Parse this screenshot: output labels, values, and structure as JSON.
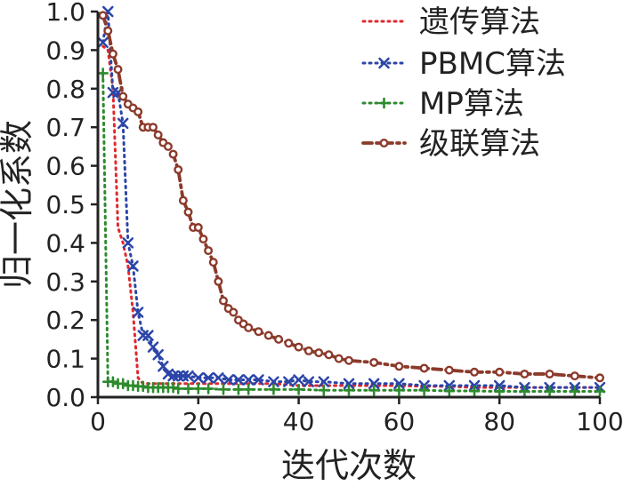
{
  "chart_data": {
    "type": "line",
    "title": "",
    "xlabel": "迭代次数",
    "ylabel": "归一化系数",
    "xlim": [
      0,
      100
    ],
    "ylim": [
      0,
      1
    ],
    "xticks": [
      0,
      20,
      40,
      60,
      80,
      100
    ],
    "yticks": [
      0.0,
      0.1,
      0.2,
      0.3,
      0.4,
      0.5,
      0.6,
      0.7,
      0.8,
      0.9,
      1.0
    ],
    "xtick_labels": [
      "0",
      "20",
      "40",
      "60",
      "80",
      "100"
    ],
    "ytick_labels": [
      "0.0",
      "0.1",
      "0.2",
      "0.3",
      "0.4",
      "0.5",
      "0.6",
      "0.7",
      "0.8",
      "0.9",
      "1.0"
    ],
    "grid": false,
    "legend_position": "top-right",
    "series": [
      {
        "name": "遗传算法",
        "color": "#e0282e",
        "line_style": "dotted",
        "marker": "none",
        "x": [
          1,
          2,
          3,
          4,
          5,
          6,
          7,
          8,
          9,
          10,
          12,
          15,
          20,
          25,
          30,
          35,
          40,
          45,
          50,
          55,
          60,
          65,
          70,
          75,
          80,
          85,
          90,
          95,
          100
        ],
        "y": [
          0.91,
          0.9,
          0.8,
          0.44,
          0.4,
          0.34,
          0.22,
          0.05,
          0.035,
          0.035,
          0.035,
          0.035,
          0.035,
          0.035,
          0.035,
          0.035,
          0.03,
          0.03,
          0.03,
          0.03,
          0.03,
          0.028,
          0.028,
          0.025,
          0.025,
          0.025,
          0.025,
          0.025,
          0.025
        ]
      },
      {
        "name": "PBMC算法",
        "color": "#2b45a8",
        "line_style": "dotted",
        "marker": "x",
        "x": [
          1,
          2,
          3,
          4,
          5,
          6,
          7,
          8,
          9,
          10,
          11,
          12,
          13,
          14,
          15,
          16,
          17,
          18,
          20,
          22,
          24,
          26,
          28,
          30,
          32,
          35,
          38,
          40,
          42,
          45,
          50,
          55,
          60,
          65,
          70,
          75,
          80,
          85,
          90,
          95,
          100
        ],
        "y": [
          0.92,
          1.0,
          0.79,
          0.79,
          0.71,
          0.4,
          0.34,
          0.22,
          0.16,
          0.16,
          0.13,
          0.11,
          0.08,
          0.06,
          0.055,
          0.055,
          0.055,
          0.055,
          0.05,
          0.05,
          0.05,
          0.045,
          0.045,
          0.045,
          0.045,
          0.04,
          0.04,
          0.045,
          0.04,
          0.04,
          0.035,
          0.035,
          0.035,
          0.03,
          0.03,
          0.03,
          0.03,
          0.025,
          0.025,
          0.025,
          0.025
        ]
      },
      {
        "name": "MP算法",
        "color": "#2d8a2d",
        "line_style": "dotted",
        "marker": "+",
        "x": [
          1,
          2,
          3,
          4,
          5,
          6,
          7,
          8,
          9,
          10,
          11,
          12,
          13,
          14,
          15,
          16,
          18,
          20,
          22,
          25,
          28,
          30,
          35,
          40,
          45,
          50,
          55,
          60,
          65,
          70,
          75,
          80,
          85,
          90,
          95,
          100
        ],
        "y": [
          0.84,
          0.04,
          0.04,
          0.035,
          0.035,
          0.03,
          0.03,
          0.028,
          0.028,
          0.025,
          0.025,
          0.025,
          0.025,
          0.025,
          0.025,
          0.022,
          0.022,
          0.022,
          0.022,
          0.02,
          0.02,
          0.02,
          0.02,
          0.02,
          0.018,
          0.018,
          0.018,
          0.018,
          0.018,
          0.016,
          0.016,
          0.015,
          0.015,
          0.015,
          0.015,
          0.015
        ]
      },
      {
        "name": "级联算法",
        "color": "#8b3a2b",
        "line_style": "dash-dot",
        "marker": "o",
        "x": [
          1,
          2,
          3,
          4,
          5,
          6,
          7,
          8,
          9,
          10,
          11,
          12,
          13,
          14,
          15,
          16,
          17,
          18,
          19,
          20,
          21,
          22,
          23,
          24,
          25,
          26,
          27,
          28,
          29,
          30,
          32,
          34,
          36,
          38,
          40,
          42,
          44,
          46,
          48,
          50,
          55,
          60,
          65,
          70,
          75,
          80,
          85,
          90,
          95,
          100
        ],
        "y": [
          0.99,
          0.95,
          0.89,
          0.85,
          0.78,
          0.76,
          0.75,
          0.74,
          0.7,
          0.7,
          0.7,
          0.68,
          0.66,
          0.65,
          0.63,
          0.59,
          0.51,
          0.48,
          0.44,
          0.44,
          0.41,
          0.38,
          0.35,
          0.3,
          0.25,
          0.23,
          0.22,
          0.2,
          0.19,
          0.18,
          0.17,
          0.16,
          0.15,
          0.14,
          0.13,
          0.12,
          0.115,
          0.11,
          0.1,
          0.095,
          0.09,
          0.08,
          0.075,
          0.07,
          0.065,
          0.065,
          0.06,
          0.06,
          0.055,
          0.05
        ]
      }
    ]
  }
}
